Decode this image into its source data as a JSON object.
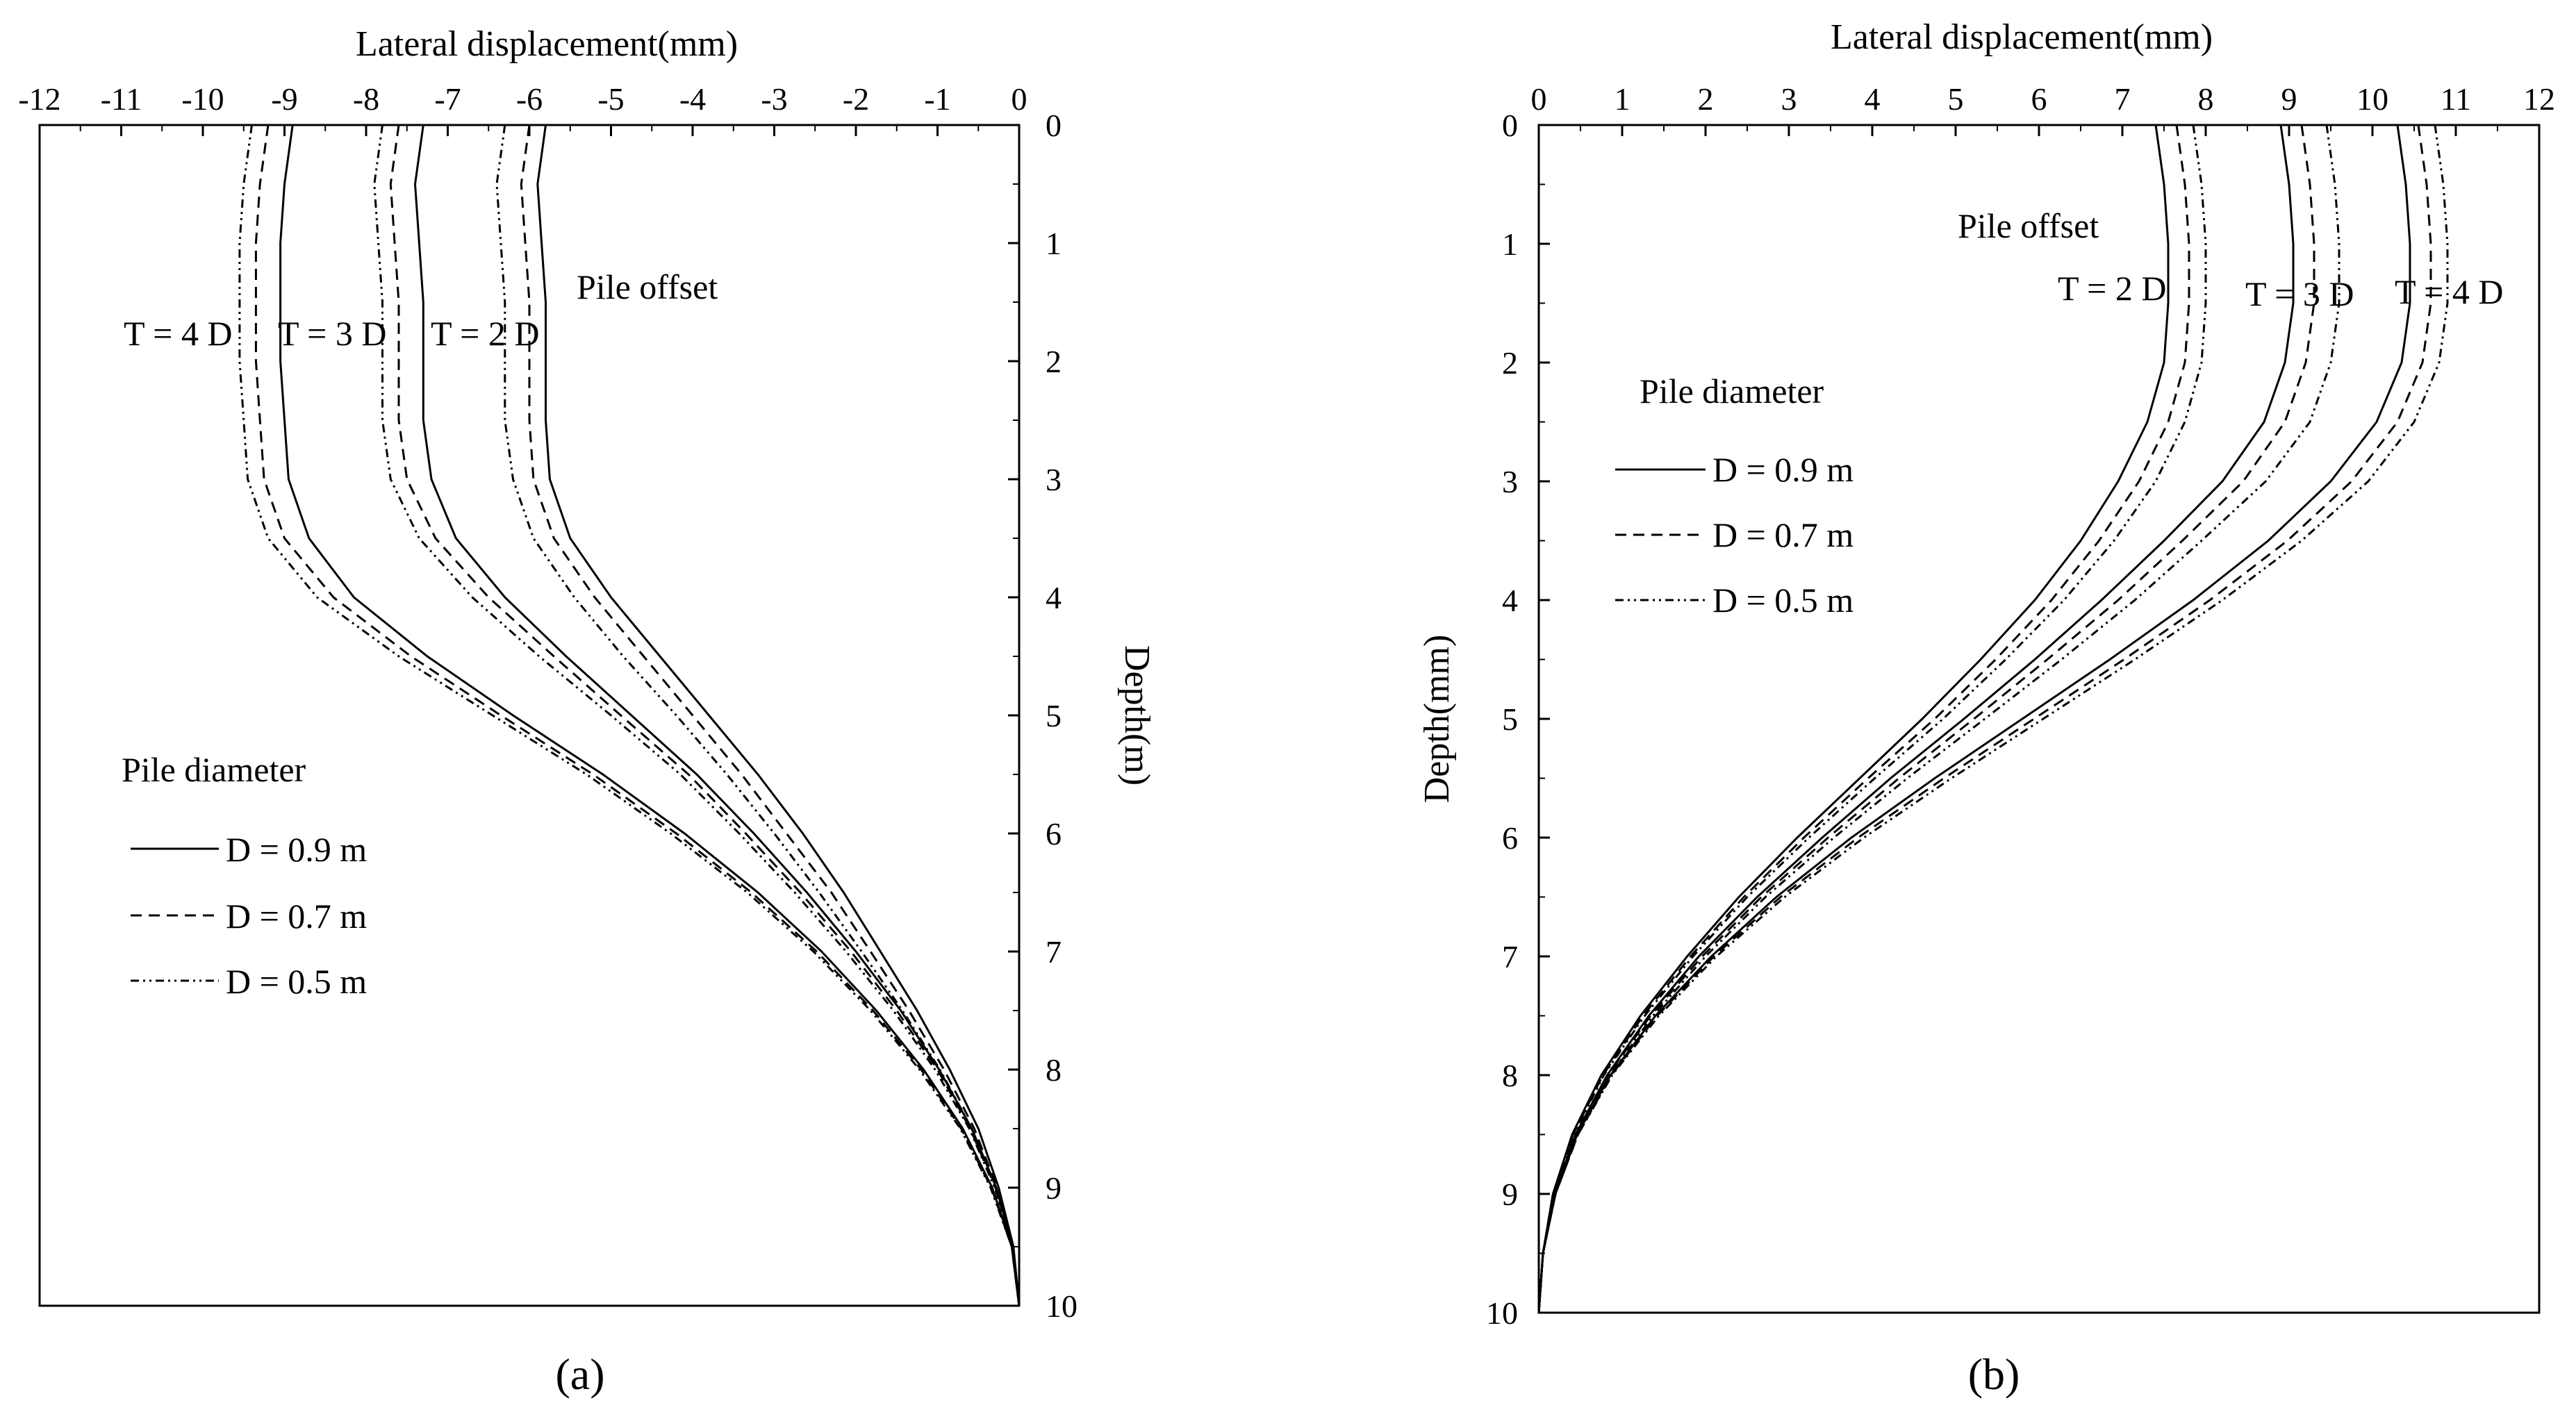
{
  "chart_data": [
    {
      "type": "line",
      "panel_label": "(a)",
      "xlabel": "Lateral displacement(mm)",
      "ylabel": "Depth(m)",
      "xlim": [
        -12,
        0
      ],
      "ylim": [
        0,
        10
      ],
      "y_inverted": true,
      "x_axis_position": "top",
      "y_axis_position": "right",
      "x_ticks": [
        "-12",
        "-11",
        "-10",
        "-9",
        "-8",
        "-7",
        "-6",
        "-5",
        "-4",
        "-3",
        "-2",
        "-1",
        "0"
      ],
      "y_ticks": [
        "0",
        "1",
        "2",
        "3",
        "4",
        "5",
        "6",
        "7",
        "8",
        "9",
        "10"
      ],
      "offset_title": "Pile offset",
      "offset_labels": [
        "T = 4 D",
        "T = 3 D",
        "T = 2 D"
      ],
      "legend_title": "Pile diameter",
      "legend": [
        "D = 0.9 m",
        "D = 0.7 m",
        "D = 0.5 m"
      ],
      "legend_placement": "bottom-left",
      "series": [
        {
          "offset": "T = 2 D",
          "diameter": "D = 0.9 m",
          "style": "solid",
          "depth": [
            0,
            0.5,
            1,
            1.5,
            2,
            2.5,
            3,
            3.5,
            4,
            4.5,
            5,
            5.5,
            6,
            6.5,
            7,
            7.5,
            8,
            8.5,
            9,
            9.5,
            10
          ],
          "displacement": [
            -5.8,
            -5.9,
            -5.85,
            -5.8,
            -5.8,
            -5.8,
            -5.75,
            -5.5,
            -5.0,
            -4.4,
            -3.8,
            -3.2,
            -2.65,
            -2.15,
            -1.7,
            -1.25,
            -0.85,
            -0.5,
            -0.25,
            -0.07,
            0
          ]
        },
        {
          "offset": "T = 2 D",
          "diameter": "D = 0.7 m",
          "style": "dashed",
          "depth": [
            0,
            0.5,
            1,
            1.5,
            2,
            2.5,
            3,
            3.5,
            4,
            4.5,
            5,
            5.5,
            6,
            6.5,
            7,
            7.5,
            8,
            8.5,
            9,
            9.5,
            10
          ],
          "displacement": [
            -6.0,
            -6.1,
            -6.05,
            -6.0,
            -6.0,
            -6.0,
            -5.95,
            -5.7,
            -5.2,
            -4.6,
            -4.0,
            -3.4,
            -2.85,
            -2.3,
            -1.82,
            -1.35,
            -0.92,
            -0.55,
            -0.27,
            -0.08,
            0
          ]
        },
        {
          "offset": "T = 2 D",
          "diameter": "D = 0.5 m",
          "style": "dashdot",
          "depth": [
            0,
            0.5,
            1,
            1.5,
            2,
            2.5,
            3,
            3.5,
            4,
            4.5,
            5,
            5.5,
            6,
            6.5,
            7,
            7.5,
            8,
            8.5,
            9,
            9.5,
            10
          ],
          "displacement": [
            -6.3,
            -6.4,
            -6.35,
            -6.3,
            -6.3,
            -6.3,
            -6.2,
            -5.95,
            -5.45,
            -4.85,
            -4.2,
            -3.58,
            -3.0,
            -2.45,
            -1.93,
            -1.43,
            -0.97,
            -0.58,
            -0.28,
            -0.08,
            0
          ]
        },
        {
          "offset": "T = 3 D",
          "diameter": "D = 0.9 m",
          "style": "solid",
          "depth": [
            0,
            0.5,
            1,
            1.5,
            2,
            2.5,
            3,
            3.5,
            4,
            4.5,
            5,
            5.5,
            6,
            6.5,
            7,
            7.5,
            8,
            8.5,
            9,
            9.5,
            10
          ],
          "displacement": [
            -7.3,
            -7.4,
            -7.35,
            -7.3,
            -7.3,
            -7.3,
            -7.2,
            -6.9,
            -6.3,
            -5.55,
            -4.75,
            -3.95,
            -3.25,
            -2.6,
            -2.0,
            -1.45,
            -0.98,
            -0.58,
            -0.28,
            -0.08,
            0
          ]
        },
        {
          "offset": "T = 3 D",
          "diameter": "D = 0.7 m",
          "style": "dashed",
          "depth": [
            0,
            0.5,
            1,
            1.5,
            2,
            2.5,
            3,
            3.5,
            4,
            4.5,
            5,
            5.5,
            6,
            6.5,
            7,
            7.5,
            8,
            8.5,
            9,
            9.5,
            10
          ],
          "displacement": [
            -7.6,
            -7.7,
            -7.65,
            -7.6,
            -7.6,
            -7.6,
            -7.5,
            -7.15,
            -6.5,
            -5.7,
            -4.88,
            -4.05,
            -3.35,
            -2.68,
            -2.06,
            -1.5,
            -1.0,
            -0.6,
            -0.29,
            -0.08,
            0
          ]
        },
        {
          "offset": "T = 3 D",
          "diameter": "D = 0.5 m",
          "style": "dashdot",
          "depth": [
            0,
            0.5,
            1,
            1.5,
            2,
            2.5,
            3,
            3.5,
            4,
            4.5,
            5,
            5.5,
            6,
            6.5,
            7,
            7.5,
            8,
            8.5,
            9,
            9.5,
            10
          ],
          "displacement": [
            -7.8,
            -7.9,
            -7.85,
            -7.8,
            -7.8,
            -7.8,
            -7.7,
            -7.35,
            -6.7,
            -5.88,
            -5.0,
            -4.15,
            -3.43,
            -2.75,
            -2.12,
            -1.54,
            -1.03,
            -0.61,
            -0.3,
            -0.08,
            0
          ]
        },
        {
          "offset": "T = 4 D",
          "diameter": "D = 0.9 m",
          "style": "solid",
          "depth": [
            0,
            0.5,
            1,
            1.5,
            2,
            2.5,
            3,
            3.5,
            4,
            4.5,
            5,
            5.5,
            6,
            6.5,
            7,
            7.5,
            8,
            8.5,
            9,
            9.5,
            10
          ],
          "displacement": [
            -8.9,
            -9.0,
            -9.05,
            -9.05,
            -9.05,
            -9.0,
            -8.95,
            -8.7,
            -8.15,
            -7.25,
            -6.2,
            -5.1,
            -4.1,
            -3.2,
            -2.42,
            -1.75,
            -1.17,
            -0.69,
            -0.33,
            -0.09,
            0
          ]
        },
        {
          "offset": "T = 4 D",
          "diameter": "D = 0.7 m",
          "style": "dashed",
          "depth": [
            0,
            0.5,
            1,
            1.5,
            2,
            2.5,
            3,
            3.5,
            4,
            4.5,
            5,
            5.5,
            6,
            6.5,
            7,
            7.5,
            8,
            8.5,
            9,
            9.5,
            10
          ],
          "displacement": [
            -9.2,
            -9.3,
            -9.35,
            -9.35,
            -9.35,
            -9.3,
            -9.25,
            -9.0,
            -8.4,
            -7.45,
            -6.35,
            -5.22,
            -4.2,
            -3.28,
            -2.48,
            -1.79,
            -1.2,
            -0.71,
            -0.34,
            -0.09,
            0
          ]
        },
        {
          "offset": "T = 4 D",
          "diameter": "D = 0.5 m",
          "style": "dashdot",
          "depth": [
            0,
            0.5,
            1,
            1.5,
            2,
            2.5,
            3,
            3.5,
            4,
            4.5,
            5,
            5.5,
            6,
            6.5,
            7,
            7.5,
            8,
            8.5,
            9,
            9.5,
            10
          ],
          "displacement": [
            -9.4,
            -9.5,
            -9.55,
            -9.55,
            -9.55,
            -9.5,
            -9.45,
            -9.2,
            -8.6,
            -7.6,
            -6.45,
            -5.3,
            -4.27,
            -3.33,
            -2.52,
            -1.82,
            -1.22,
            -0.72,
            -0.35,
            -0.09,
            0
          ]
        }
      ]
    },
    {
      "type": "line",
      "panel_label": "(b)",
      "xlabel": "Lateral displacement(mm)",
      "ylabel": "Depth(mm)",
      "xlim": [
        0,
        12
      ],
      "ylim": [
        0,
        10
      ],
      "y_inverted": true,
      "x_axis_position": "top",
      "y_axis_position": "left",
      "x_ticks": [
        "0",
        "1",
        "2",
        "3",
        "4",
        "5",
        "6",
        "7",
        "8",
        "9",
        "10",
        "11",
        "12"
      ],
      "y_ticks": [
        "0",
        "1",
        "2",
        "3",
        "4",
        "5",
        "6",
        "7",
        "8",
        "9",
        "10"
      ],
      "offset_title": "Pile offset",
      "offset_labels": [
        "T = 2 D",
        "T = 3 D",
        "T = 4 D"
      ],
      "legend_title": "Pile diameter",
      "legend": [
        "D = 0.9 m",
        "D = 0.7 m",
        "D = 0.5 m"
      ],
      "legend_placement": "top-left",
      "series": [
        {
          "offset": "T = 2 D",
          "diameter": "D = 0.9 m",
          "style": "solid",
          "depth": [
            0,
            0.5,
            1,
            1.5,
            2,
            2.5,
            3,
            3.5,
            4,
            4.5,
            5,
            5.5,
            6,
            6.5,
            7,
            7.5,
            8,
            8.5,
            9,
            9.5,
            10
          ],
          "displacement": [
            7.4,
            7.5,
            7.55,
            7.55,
            7.5,
            7.3,
            6.95,
            6.5,
            5.95,
            5.3,
            4.6,
            3.85,
            3.1,
            2.4,
            1.78,
            1.22,
            0.75,
            0.4,
            0.17,
            0.05,
            0
          ]
        },
        {
          "offset": "T = 2 D",
          "diameter": "D = 0.7 m",
          "style": "dashed",
          "depth": [
            0,
            0.5,
            1,
            1.5,
            2,
            2.5,
            3,
            3.5,
            4,
            4.5,
            5,
            5.5,
            6,
            6.5,
            7,
            7.5,
            8,
            8.5,
            9,
            9.5,
            10
          ],
          "displacement": [
            7.65,
            7.75,
            7.8,
            7.8,
            7.75,
            7.55,
            7.2,
            6.72,
            6.15,
            5.48,
            4.75,
            3.95,
            3.18,
            2.46,
            1.82,
            1.25,
            0.77,
            0.41,
            0.17,
            0.05,
            0
          ]
        },
        {
          "offset": "T = 2 D",
          "diameter": "D = 0.5 m",
          "style": "dashdot",
          "depth": [
            0,
            0.5,
            1,
            1.5,
            2,
            2.5,
            3,
            3.5,
            4,
            4.5,
            5,
            5.5,
            6,
            6.5,
            7,
            7.5,
            8,
            8.5,
            9,
            9.5,
            10
          ],
          "displacement": [
            7.85,
            7.95,
            8.0,
            8.0,
            7.95,
            7.75,
            7.4,
            6.9,
            6.3,
            5.6,
            4.85,
            4.03,
            3.24,
            2.5,
            1.85,
            1.27,
            0.78,
            0.42,
            0.18,
            0.05,
            0
          ]
        },
        {
          "offset": "T = 3 D",
          "diameter": "D = 0.9 m",
          "style": "solid",
          "depth": [
            0,
            0.5,
            1,
            1.5,
            2,
            2.5,
            3,
            3.5,
            4,
            4.5,
            5,
            5.5,
            6,
            6.5,
            7,
            7.5,
            8,
            8.5,
            9,
            9.5,
            10
          ],
          "displacement": [
            8.9,
            9.0,
            9.05,
            9.05,
            8.95,
            8.7,
            8.2,
            7.5,
            6.75,
            5.95,
            5.1,
            4.22,
            3.4,
            2.62,
            1.92,
            1.32,
            0.82,
            0.44,
            0.19,
            0.05,
            0
          ]
        },
        {
          "offset": "T = 3 D",
          "diameter": "D = 0.7 m",
          "style": "dashed",
          "depth": [
            0,
            0.5,
            1,
            1.5,
            2,
            2.5,
            3,
            3.5,
            4,
            4.5,
            5,
            5.5,
            6,
            6.5,
            7,
            7.5,
            8,
            8.5,
            9,
            9.5,
            10
          ],
          "displacement": [
            9.15,
            9.25,
            9.3,
            9.3,
            9.2,
            8.95,
            8.45,
            7.72,
            6.95,
            6.1,
            5.22,
            4.32,
            3.47,
            2.67,
            1.96,
            1.34,
            0.83,
            0.45,
            0.19,
            0.05,
            0
          ]
        },
        {
          "offset": "T = 3 D",
          "diameter": "D = 0.5 m",
          "style": "dashdot",
          "depth": [
            0,
            0.5,
            1,
            1.5,
            2,
            2.5,
            3,
            3.5,
            4,
            4.5,
            5,
            5.5,
            6,
            6.5,
            7,
            7.5,
            8,
            8.5,
            9,
            9.5,
            10
          ],
          "displacement": [
            9.45,
            9.55,
            9.6,
            9.6,
            9.5,
            9.25,
            8.72,
            7.95,
            7.15,
            6.27,
            5.35,
            4.42,
            3.54,
            2.72,
            2.0,
            1.37,
            0.85,
            0.46,
            0.2,
            0.05,
            0
          ]
        },
        {
          "offset": "T = 4 D",
          "diameter": "D = 0.9 m",
          "style": "solid",
          "depth": [
            0,
            0.5,
            1,
            1.5,
            2,
            2.5,
            3,
            3.5,
            4,
            4.5,
            5,
            5.5,
            6,
            6.5,
            7,
            7.5,
            8,
            8.5,
            9,
            9.5,
            10
          ],
          "displacement": [
            10.3,
            10.4,
            10.45,
            10.45,
            10.35,
            10.05,
            9.5,
            8.75,
            7.85,
            6.85,
            5.8,
            4.75,
            3.75,
            2.85,
            2.07,
            1.4,
            0.86,
            0.46,
            0.2,
            0.05,
            0
          ]
        },
        {
          "offset": "T = 4 D",
          "diameter": "D = 0.7 m",
          "style": "dashed",
          "depth": [
            0,
            0.5,
            1,
            1.5,
            2,
            2.5,
            3,
            3.5,
            4,
            4.5,
            5,
            5.5,
            6,
            6.5,
            7,
            7.5,
            8,
            8.5,
            9,
            9.5,
            10
          ],
          "displacement": [
            10.55,
            10.65,
            10.7,
            10.7,
            10.6,
            10.3,
            9.75,
            8.98,
            8.05,
            7.02,
            5.94,
            4.86,
            3.83,
            2.9,
            2.1,
            1.42,
            0.87,
            0.47,
            0.2,
            0.05,
            0
          ]
        },
        {
          "offset": "T = 4 D",
          "diameter": "D = 0.5 m",
          "style": "dashdot",
          "depth": [
            0,
            0.5,
            1,
            1.5,
            2,
            2.5,
            3,
            3.5,
            4,
            4.5,
            5,
            5.5,
            6,
            6.5,
            7,
            7.5,
            8,
            8.5,
            9,
            9.5,
            10
          ],
          "displacement": [
            10.75,
            10.85,
            10.9,
            10.9,
            10.8,
            10.5,
            9.95,
            9.15,
            8.2,
            7.15,
            6.05,
            4.95,
            3.9,
            2.95,
            2.13,
            1.44,
            0.88,
            0.47,
            0.2,
            0.05,
            0
          ]
        }
      ]
    }
  ]
}
